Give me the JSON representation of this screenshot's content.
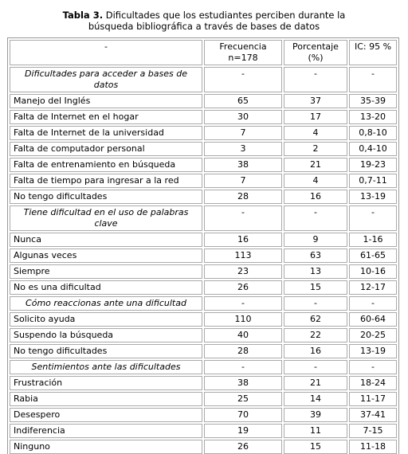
{
  "title": {
    "label": "Tabla 3.",
    "text": "Dificultades que los estudiantes perciben durante la búsqueda bibliográfica a través de bases de datos"
  },
  "table": {
    "header": [
      "-",
      "Frecuencia n=178",
      "Porcentaje (%)",
      "IC: 95 %"
    ],
    "rows": [
      {
        "section": true,
        "cells": [
          "Dificultades para acceder a bases de datos",
          "-",
          "-",
          "-"
        ]
      },
      {
        "cells": [
          "Manejo del Inglés",
          65,
          37,
          "35-39"
        ]
      },
      {
        "cells": [
          "Falta de Internet en el hogar",
          30,
          17,
          "13-20"
        ]
      },
      {
        "cells": [
          "Falta de Internet de la universidad",
          7,
          4,
          "0,8-10"
        ]
      },
      {
        "cells": [
          "Falta de computador personal",
          3,
          2,
          "0,4-10"
        ]
      },
      {
        "cells": [
          "Falta de entrenamiento en búsqueda",
          38,
          21,
          "19-23"
        ]
      },
      {
        "cells": [
          "Falta de tiempo para ingresar a la red",
          7,
          4,
          "0,7-11"
        ]
      },
      {
        "cells": [
          "No tengo dificultades",
          28,
          16,
          "13-19"
        ]
      },
      {
        "section": true,
        "cells": [
          "Tiene dificultad en el uso de palabras clave",
          "-",
          "-",
          "-"
        ]
      },
      {
        "cells": [
          "Nunca",
          16,
          9,
          "1-16"
        ]
      },
      {
        "cells": [
          "Algunas veces",
          113,
          63,
          "61-65"
        ]
      },
      {
        "cells": [
          "Siempre",
          23,
          13,
          "10-16"
        ]
      },
      {
        "cells": [
          "No es una dificultad",
          26,
          15,
          "12-17"
        ]
      },
      {
        "section": true,
        "cells": [
          "Cómo reaccionas ante una dificultad",
          "-",
          "-",
          "-"
        ]
      },
      {
        "cells": [
          "Solicito ayuda",
          110,
          62,
          "60-64"
        ]
      },
      {
        "cells": [
          "Suspendo la búsqueda",
          40,
          22,
          "20-25"
        ]
      },
      {
        "cells": [
          "No tengo dificultades",
          28,
          16,
          "13-19"
        ]
      },
      {
        "section": true,
        "cells": [
          "Sentimientos ante las dificultades",
          "-",
          "-",
          "-"
        ]
      },
      {
        "cells": [
          "Frustración",
          38,
          21,
          "18-24"
        ]
      },
      {
        "cells": [
          "Rabia",
          25,
          14,
          "11-17"
        ]
      },
      {
        "cells": [
          "Desespero",
          70,
          39,
          "37-41"
        ]
      },
      {
        "cells": [
          "Indiferencia",
          19,
          11,
          "7-15"
        ]
      },
      {
        "cells": [
          "Ninguno",
          26,
          15,
          "11-18"
        ]
      }
    ]
  }
}
